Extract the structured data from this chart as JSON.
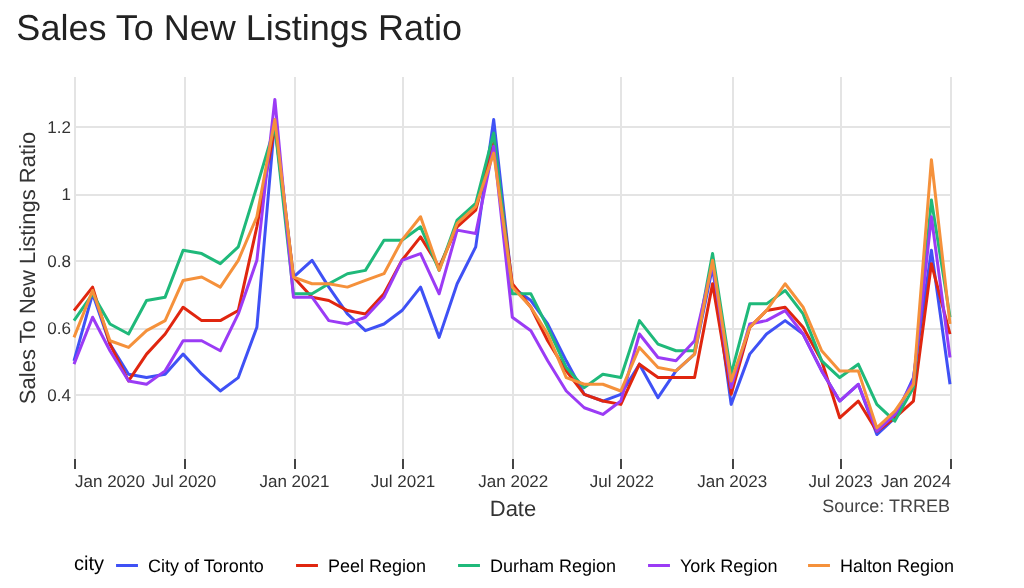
{
  "chart_data": {
    "type": "line",
    "title": "Sales To New Listings Ratio",
    "xlabel": "Date",
    "ylabel": "Sales To New Listings Ratio",
    "legend_title": "city",
    "annotations": [
      "Source: TRREB"
    ],
    "x": [
      "2020-01",
      "2020-02",
      "2020-03",
      "2020-04",
      "2020-05",
      "2020-06",
      "2020-07",
      "2020-08",
      "2020-09",
      "2020-10",
      "2020-11",
      "2020-12",
      "2021-01",
      "2021-02",
      "2021-03",
      "2021-04",
      "2021-05",
      "2021-06",
      "2021-07",
      "2021-08",
      "2021-09",
      "2021-10",
      "2021-11",
      "2021-12",
      "2022-01",
      "2022-02",
      "2022-03",
      "2022-04",
      "2022-05",
      "2022-06",
      "2022-07",
      "2022-08",
      "2022-09",
      "2022-10",
      "2022-11",
      "2022-12",
      "2023-01",
      "2023-02",
      "2023-03",
      "2023-04",
      "2023-05",
      "2023-06",
      "2023-07",
      "2023-08",
      "2023-09",
      "2023-10",
      "2023-11",
      "2023-12",
      "2024-01"
    ],
    "series": [
      {
        "name": "City of Toronto",
        "color": "#3f51f5",
        "values": [
          0.5,
          0.7,
          0.55,
          0.46,
          0.45,
          0.46,
          0.52,
          0.46,
          0.41,
          0.45,
          0.6,
          1.22,
          0.75,
          0.8,
          0.72,
          0.64,
          0.59,
          0.61,
          0.65,
          0.72,
          0.57,
          0.73,
          0.84,
          1.22,
          0.72,
          0.68,
          0.61,
          0.5,
          0.4,
          0.38,
          0.4,
          0.49,
          0.39,
          0.47,
          0.52,
          0.78,
          0.37,
          0.52,
          0.58,
          0.62,
          0.58,
          0.47,
          0.38,
          0.43,
          0.28,
          0.33,
          0.45,
          0.83,
          0.43
        ]
      },
      {
        "name": "Peel Region",
        "color": "#e0260f",
        "values": [
          0.65,
          0.72,
          0.55,
          0.44,
          0.52,
          0.58,
          0.66,
          0.62,
          0.62,
          0.65,
          0.9,
          1.2,
          0.75,
          0.69,
          0.68,
          0.65,
          0.64,
          0.7,
          0.8,
          0.87,
          0.78,
          0.9,
          0.95,
          1.15,
          0.73,
          0.66,
          0.56,
          0.47,
          0.4,
          0.38,
          0.37,
          0.49,
          0.45,
          0.45,
          0.45,
          0.73,
          0.4,
          0.6,
          0.65,
          0.66,
          0.6,
          0.5,
          0.33,
          0.38,
          0.29,
          0.33,
          0.38,
          0.79,
          0.58
        ]
      },
      {
        "name": "Durham Region",
        "color": "#1fb97a",
        "values": [
          0.62,
          0.7,
          0.61,
          0.58,
          0.68,
          0.69,
          0.83,
          0.82,
          0.79,
          0.84,
          1.02,
          1.2,
          0.7,
          0.7,
          0.73,
          0.76,
          0.77,
          0.86,
          0.86,
          0.9,
          0.77,
          0.92,
          0.97,
          1.18,
          0.7,
          0.7,
          0.6,
          0.48,
          0.42,
          0.46,
          0.45,
          0.62,
          0.55,
          0.53,
          0.53,
          0.82,
          0.46,
          0.67,
          0.67,
          0.71,
          0.64,
          0.5,
          0.45,
          0.49,
          0.37,
          0.32,
          0.42,
          0.98,
          0.63
        ]
      },
      {
        "name": "York Region",
        "color": "#9b3bf5",
        "values": [
          0.49,
          0.63,
          0.53,
          0.44,
          0.43,
          0.47,
          0.56,
          0.56,
          0.53,
          0.64,
          0.8,
          1.28,
          0.69,
          0.69,
          0.62,
          0.61,
          0.63,
          0.69,
          0.8,
          0.82,
          0.7,
          0.89,
          0.88,
          1.14,
          0.63,
          0.59,
          0.5,
          0.41,
          0.36,
          0.34,
          0.38,
          0.58,
          0.51,
          0.5,
          0.56,
          0.79,
          0.42,
          0.61,
          0.62,
          0.65,
          0.58,
          0.47,
          0.38,
          0.43,
          0.29,
          0.34,
          0.44,
          0.93,
          0.51
        ]
      },
      {
        "name": "Halton Region",
        "color": "#f5913b",
        "values": [
          0.57,
          0.71,
          0.56,
          0.54,
          0.59,
          0.62,
          0.74,
          0.75,
          0.72,
          0.8,
          0.93,
          1.22,
          0.75,
          0.73,
          0.73,
          0.72,
          0.74,
          0.76,
          0.86,
          0.93,
          0.77,
          0.91,
          0.96,
          1.12,
          0.72,
          0.66,
          0.58,
          0.45,
          0.43,
          0.43,
          0.41,
          0.54,
          0.48,
          0.47,
          0.52,
          0.8,
          0.44,
          0.6,
          0.65,
          0.73,
          0.66,
          0.53,
          0.47,
          0.47,
          0.3,
          0.35,
          0.43,
          1.1,
          0.61
        ]
      }
    ],
    "xlim": [
      "2020-01",
      "2024-01"
    ],
    "xticks": [
      {
        "value": "2020-01",
        "label": "Jan 2020"
      },
      {
        "value": "2020-07",
        "label": "Jul 2020"
      },
      {
        "value": "2021-01",
        "label": "Jan 2021"
      },
      {
        "value": "2021-07",
        "label": "Jul 2021"
      },
      {
        "value": "2022-01",
        "label": "Jan 2022"
      },
      {
        "value": "2022-07",
        "label": "Jul 2022"
      },
      {
        "value": "2023-01",
        "label": "Jan 2023"
      },
      {
        "value": "2023-07",
        "label": "Jul 2023"
      },
      {
        "value": "2024-01",
        "label": "Jan 2024"
      }
    ],
    "ylim": [
      0.21,
      1.35
    ],
    "yticks": [
      0.4,
      0.6,
      0.8,
      1,
      1.2
    ],
    "grid": true,
    "legend": "bottom",
    "marker": "none",
    "line_style": "solid"
  }
}
